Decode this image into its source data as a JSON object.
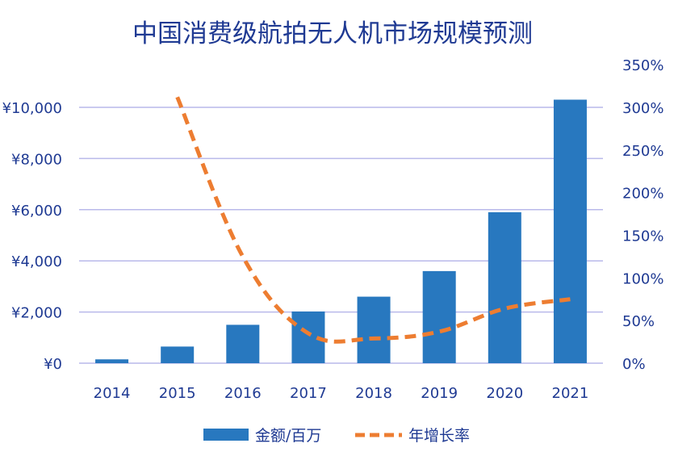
{
  "chart_data": {
    "type": "bar",
    "title": "中国消费级航拍无人机市场规模预测",
    "categories": [
      "2014",
      "2015",
      "2016",
      "2017",
      "2018",
      "2019",
      "2020",
      "2021"
    ],
    "series": [
      {
        "name": "金额/百万",
        "type": "bar",
        "axis": "left",
        "color": "#2878bf",
        "values": [
          150,
          650,
          1500,
          2020,
          2600,
          3600,
          5900,
          10300
        ]
      },
      {
        "name": "年增长率",
        "type": "line",
        "style": "dashed",
        "axis": "right",
        "color": "#ed7d31",
        "values": [
          null,
          3.12,
          1.25,
          0.35,
          0.29,
          0.37,
          0.64,
          0.75
        ]
      }
    ],
    "y_left": {
      "ylim": [
        0,
        10000
      ],
      "ticks": [
        {
          "value": 0,
          "label": "¥0"
        },
        {
          "value": 2000,
          "label": "¥2,000"
        },
        {
          "value": 4000,
          "label": "¥4,000"
        },
        {
          "value": 6000,
          "label": "¥6,000"
        },
        {
          "value": 8000,
          "label": "¥8,000"
        },
        {
          "value": 10000,
          "label": "¥10,000"
        }
      ]
    },
    "y_right": {
      "ylim": [
        0,
        3.5
      ],
      "ticks": [
        {
          "value": 0,
          "label": "0%"
        },
        {
          "value": 0.5,
          "label": "50%"
        },
        {
          "value": 1.0,
          "label": "100%"
        },
        {
          "value": 1.5,
          "label": "150%"
        },
        {
          "value": 2.0,
          "label": "200%"
        },
        {
          "value": 2.5,
          "label": "250%"
        },
        {
          "value": 3.0,
          "label": "300%"
        },
        {
          "value": 3.5,
          "label": "350%"
        }
      ]
    },
    "grid": true,
    "legend_position": "bottom"
  }
}
